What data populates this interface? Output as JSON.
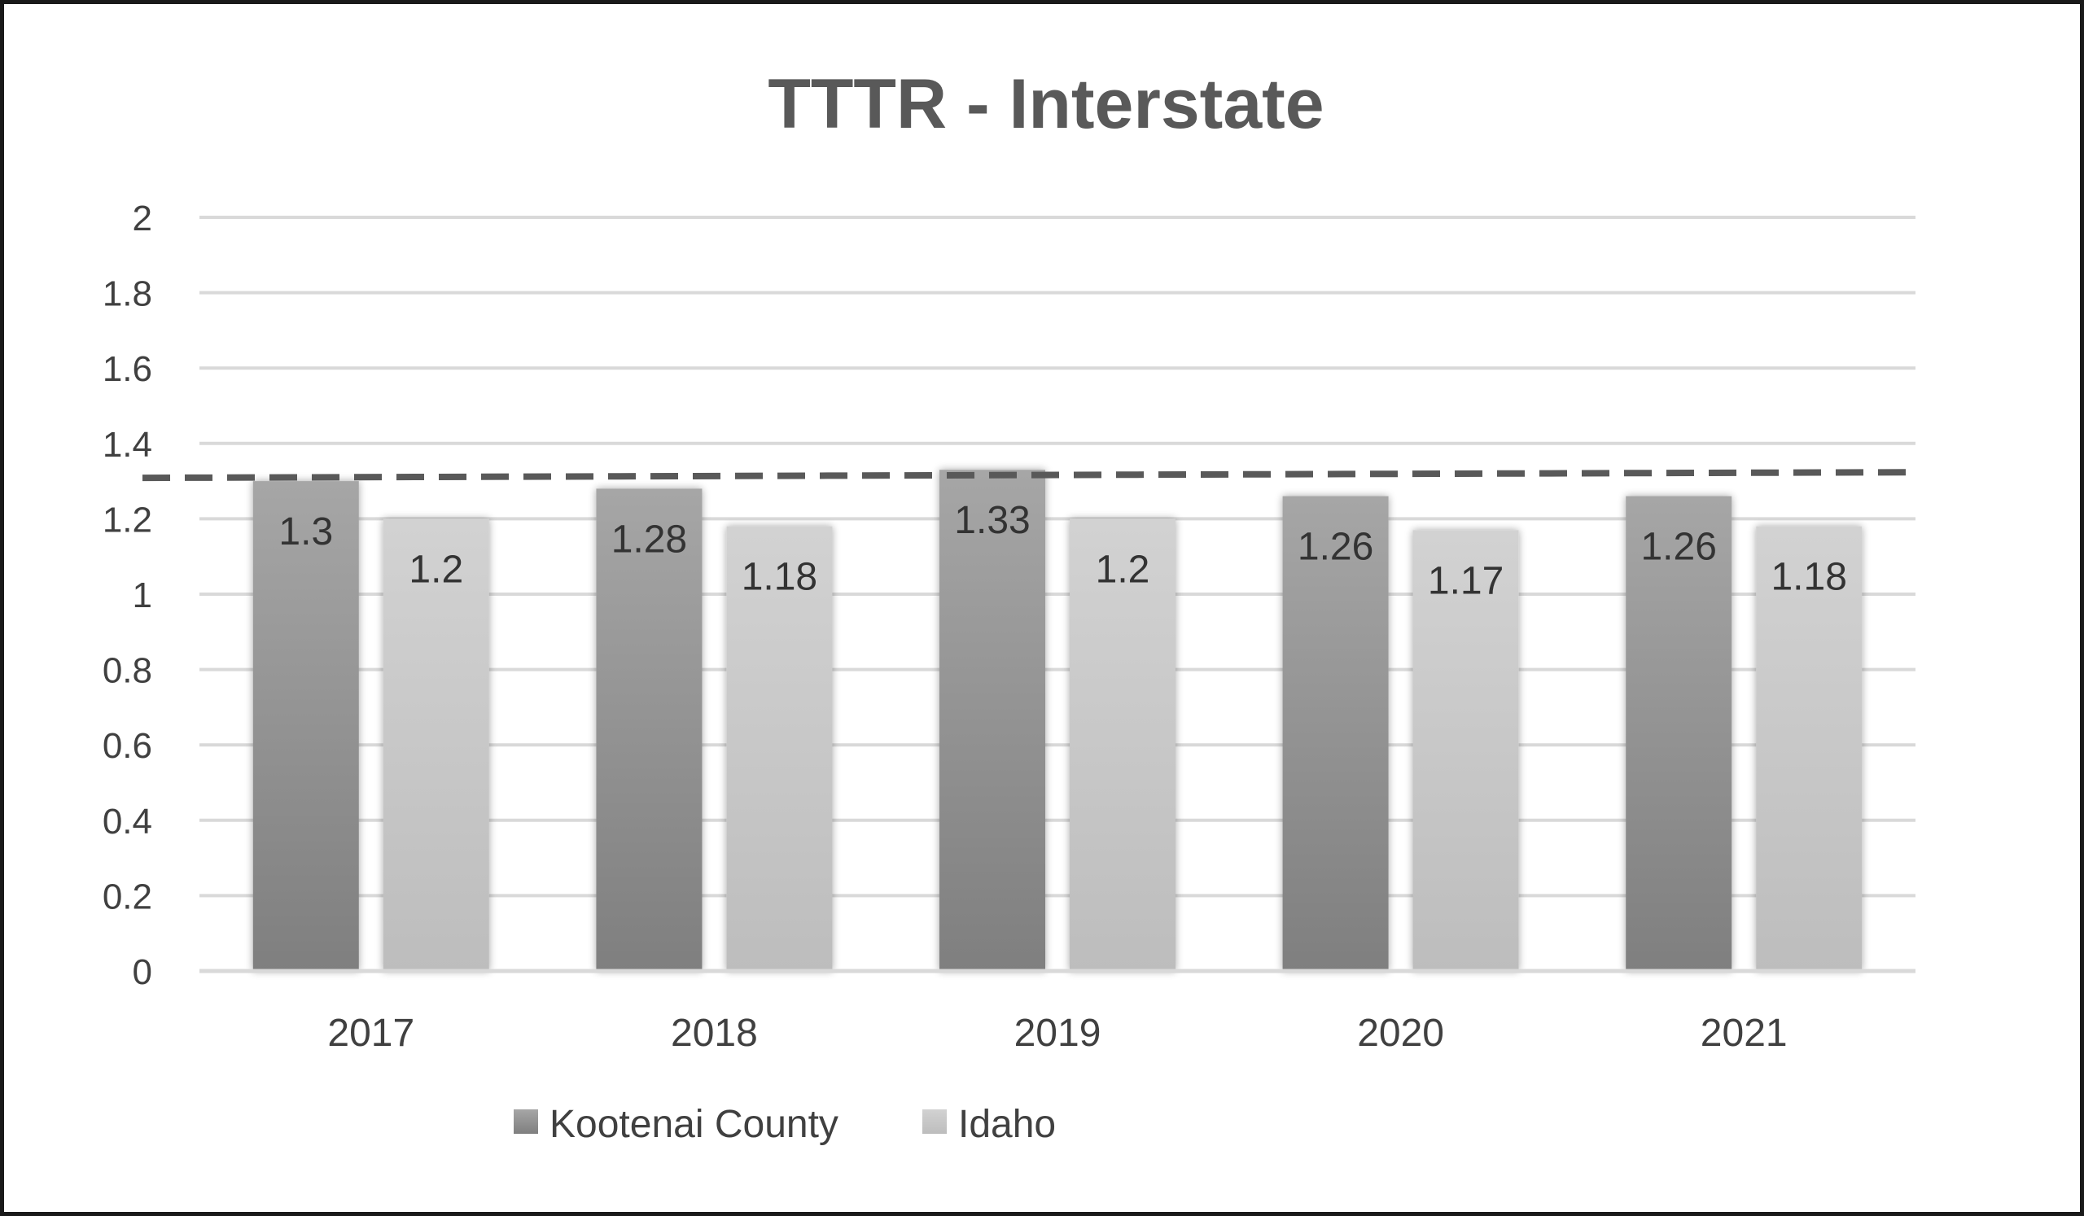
{
  "chart_data": {
    "type": "bar",
    "title": "TTTR - Interstate",
    "xlabel": "",
    "ylabel": "",
    "categories": [
      "2017",
      "2018",
      "2019",
      "2020",
      "2021"
    ],
    "series": [
      {
        "name": "Kootenai County",
        "values": [
          1.3,
          1.28,
          1.33,
          1.26,
          1.26
        ],
        "color_top": "#a6a6a6",
        "color_bottom": "#7f7f7f"
      },
      {
        "name": "Idaho",
        "values": [
          1.2,
          1.18,
          1.2,
          1.17,
          1.18
        ],
        "color_top": "#d2d2d2",
        "color_bottom": "#bdbdbd"
      }
    ],
    "data_labels": [
      [
        "1.3",
        "1.28",
        "1.33",
        "1.26",
        "1.26"
      ],
      [
        "1.2",
        "1.18",
        "1.2",
        "1.17",
        "1.18"
      ]
    ],
    "ylim": [
      0,
      2
    ],
    "yticks": [
      0,
      0.2,
      0.4,
      0.6,
      0.8,
      1,
      1.2,
      1.4,
      1.6,
      1.8,
      2
    ],
    "ytick_labels": [
      "0",
      "0.2",
      "0.4",
      "0.6",
      "0.8",
      "1",
      "1.2",
      "1.4",
      "1.6",
      "1.8",
      "2"
    ],
    "reference_line": {
      "style": "dashed",
      "start_value": 1.3,
      "end_value": 1.315,
      "color": "#595959"
    },
    "grid": true,
    "gridline_color": "#d9d9d9",
    "legend_position": "bottom"
  }
}
